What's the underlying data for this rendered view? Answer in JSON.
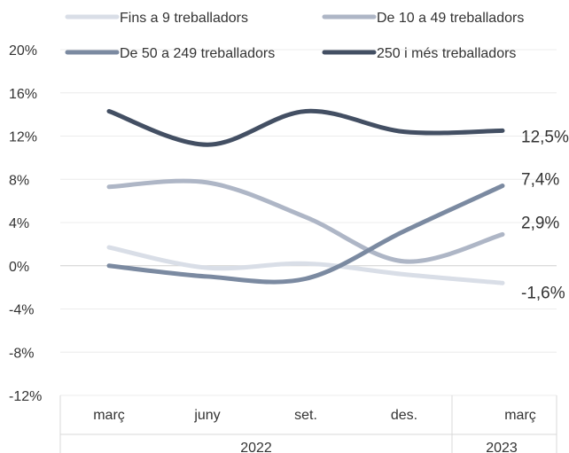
{
  "chart_data": {
    "type": "line",
    "categories": [
      "març",
      "juny",
      "set.",
      "des.",
      "març"
    ],
    "years": [
      {
        "label": "2022",
        "from": 0,
        "to": 3
      },
      {
        "label": "2023",
        "from": 4,
        "to": 4
      }
    ],
    "ylim": [
      -12,
      20
    ],
    "yticks": [
      20,
      16,
      12,
      8,
      4,
      0,
      -4,
      -8,
      -12
    ],
    "ytick_labels": [
      "20%",
      "16%",
      "12%",
      "8%",
      "4%",
      "0%",
      "-4%",
      "-8%",
      "-12%"
    ],
    "grid": true,
    "legend_position": "top",
    "series": [
      {
        "name": "Fins a 9 treballadors",
        "color": "#d9dee7",
        "values": [
          1.7,
          -0.2,
          0.2,
          -0.8,
          -1.6
        ],
        "end_label": "-1,6%"
      },
      {
        "name": "De 10 a 49 treballadors",
        "color": "#aeb6c6",
        "values": [
          7.3,
          7.7,
          4.5,
          0.4,
          2.9
        ],
        "end_label": "2,9%"
      },
      {
        "name": "De 50 a 249 treballadors",
        "color": "#7b8aa1",
        "values": [
          0.0,
          -1.0,
          -1.2,
          3.2,
          7.4
        ],
        "end_label": "7,4%"
      },
      {
        "name": "250 i més treballadors",
        "color": "#434f63",
        "values": [
          14.3,
          11.2,
          14.3,
          12.4,
          12.5
        ],
        "end_label": "12,5%"
      }
    ]
  }
}
